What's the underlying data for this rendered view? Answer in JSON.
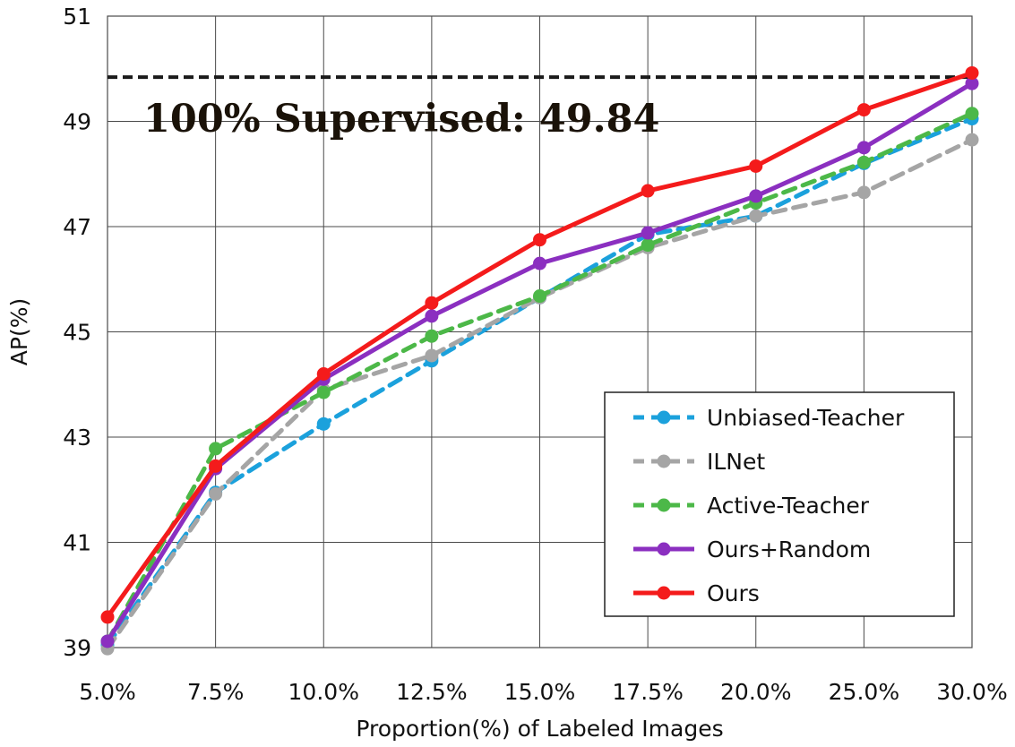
{
  "chart_data": {
    "type": "line",
    "xlabel": "Proportion(%) of Labeled Images",
    "ylabel": "AP(%)",
    "categories": [
      "5.0%",
      "7.5%",
      "10.0%",
      "12.5%",
      "15.0%",
      "17.5%",
      "20.0%",
      "25.0%",
      "30.0%"
    ],
    "ylim": [
      39,
      51
    ],
    "yticks": [
      "39",
      "41",
      "43",
      "45",
      "47",
      "49",
      "51"
    ],
    "grid": true,
    "legend_position": "bottom-right",
    "reference_line": {
      "value": 49.84,
      "label": "100% Supervised: 49.84",
      "color": "#1a1a1a",
      "style": "dashed"
    },
    "series": [
      {
        "name": "Unbiased-Teacher",
        "color": "#1ba1dc",
        "style": "dashed",
        "values": [
          39.05,
          41.95,
          43.25,
          44.45,
          45.65,
          46.85,
          47.2,
          48.2,
          49.05
        ]
      },
      {
        "name": "ILNet",
        "color": "#a5a5a5",
        "style": "dashed",
        "values": [
          38.98,
          41.92,
          43.9,
          44.55,
          45.65,
          46.6,
          47.2,
          47.65,
          48.65
        ]
      },
      {
        "name": "Active-Teacher",
        "color": "#4cb848",
        "style": "dashed",
        "values": [
          39.12,
          42.78,
          43.85,
          44.92,
          45.68,
          46.65,
          47.45,
          48.22,
          49.15
        ]
      },
      {
        "name": "Ours+Random",
        "color": "#8b2fc0",
        "style": "solid",
        "values": [
          39.12,
          42.4,
          44.1,
          45.3,
          46.3,
          46.88,
          47.58,
          48.5,
          49.72
        ]
      },
      {
        "name": "Ours",
        "color": "#f41b1b",
        "style": "solid",
        "values": [
          39.58,
          42.45,
          44.2,
          45.55,
          46.75,
          47.68,
          48.15,
          49.22,
          49.92
        ]
      }
    ]
  }
}
